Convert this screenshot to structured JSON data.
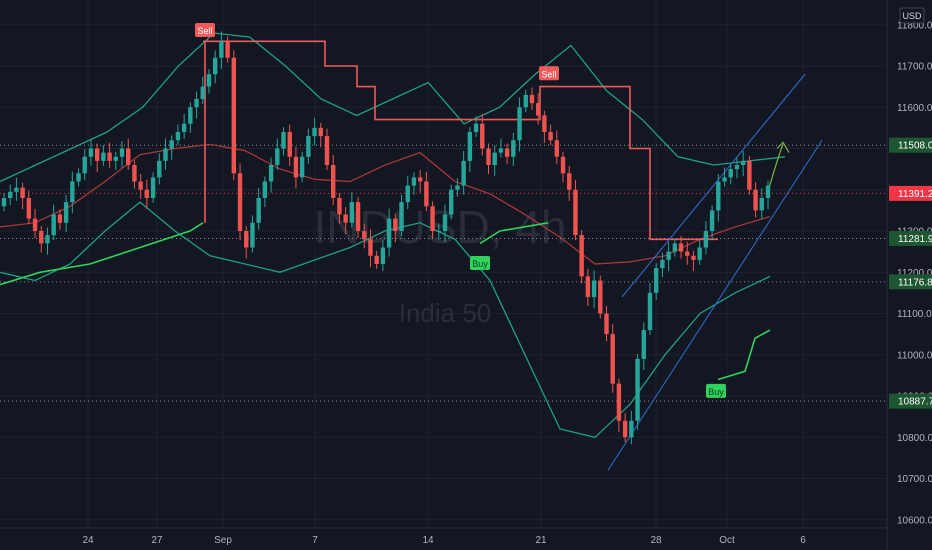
{
  "watermark": {
    "symbol": "INDUSD, 4h",
    "name": "India 50"
  },
  "price_axis": {
    "currency": "USD",
    "ticks": [
      "11800.0",
      "11700.0",
      "11600.0",
      "11500.0",
      "11400.0",
      "11300.0",
      "11200.0",
      "11100.0",
      "11000.0",
      "10900.0",
      "10800.0",
      "10700.0",
      "10600.0"
    ],
    "levels": [
      {
        "value": 11508.0,
        "label": "11508.0",
        "color": "#1e5631",
        "text_color": "#ffffff"
      },
      {
        "value": 11391.2,
        "label": "11391.2",
        "color": "#f23645",
        "text_color": "#ffffff"
      },
      {
        "value": 11281.9,
        "label": "11281.9",
        "color": "#1e5631",
        "text_color": "#ffffff"
      },
      {
        "value": 11176.8,
        "label": "11176.8",
        "color": "#1e5631",
        "text_color": "#ffffff"
      },
      {
        "value": 10887.7,
        "label": "10887.7",
        "color": "#1e5631",
        "text_color": "#ffffff"
      }
    ]
  },
  "time_axis": {
    "labels": [
      "24",
      "27",
      "Sep",
      "7",
      "14",
      "21",
      "28",
      "Oct",
      "6"
    ]
  },
  "signals": [
    {
      "type": "sell",
      "label": "Sell"
    },
    {
      "type": "sell",
      "label": "Sell"
    },
    {
      "type": "buy",
      "label": "Buy"
    },
    {
      "type": "buy",
      "label": "Buy"
    }
  ],
  "colors": {
    "background": "#131722",
    "grid": "#1e222d",
    "up": "#26a69a",
    "down": "#ef5350",
    "bollinger": "#1f9f86",
    "basis": "#b2373d",
    "stop_sell": "#f05a5a",
    "stop_buy": "#2fd35b",
    "channel": "#2e6fd8",
    "arrow": "#7cb342"
  },
  "chart_data": {
    "type": "candlestick",
    "title": "",
    "ylim": [
      10580,
      11860
    ],
    "candles_close": [
      11380,
      11395,
      11405,
      11380,
      11330,
      11300,
      11270,
      11290,
      11340,
      11320,
      11370,
      11420,
      11440,
      11480,
      11500,
      11470,
      11490,
      11470,
      11480,
      11500,
      11460,
      11420,
      11400,
      11380,
      11430,
      11470,
      11500,
      11520,
      11540,
      11560,
      11600,
      11620,
      11650,
      11680,
      11720,
      11760,
      11720,
      11440,
      11300,
      11260,
      11320,
      11380,
      11420,
      11460,
      11500,
      11540,
      11480,
      11430,
      11480,
      11530,
      11550,
      11530,
      11460,
      11380,
      11340,
      11320,
      11370,
      11300,
      11280,
      11240,
      11220,
      11260,
      11330,
      11300,
      11370,
      11410,
      11430,
      11420,
      11360,
      11300,
      11300,
      11340,
      11400,
      11410,
      11470,
      11540,
      11560,
      11500,
      11460,
      11490,
      11500,
      11480,
      11520,
      11600,
      11630,
      11610,
      11580,
      11540,
      11520,
      11480,
      11440,
      11400,
      11290,
      11190,
      11140,
      11180,
      11100,
      11050,
      10930,
      10840,
      10800,
      10840,
      10990,
      11060,
      11150,
      11210,
      11230,
      11250,
      11270,
      11250,
      11240,
      11230,
      11260,
      11300,
      11350,
      11420,
      11430,
      11450,
      11460,
      11470,
      11400,
      11350,
      11380,
      11410
    ],
    "bollinger_upper_approx": [
      11420,
      11460,
      11500,
      11540,
      11600,
      11700,
      11780,
      11770,
      11700,
      11620,
      11580,
      11620,
      11660,
      11560,
      11600,
      11680,
      11750,
      11640,
      11570,
      11480,
      11460,
      11470,
      11480
    ],
    "bollinger_lower_approx": [
      11200,
      11180,
      11220,
      11300,
      11370,
      11300,
      11240,
      11220,
      11200,
      11230,
      11260,
      11300,
      11320,
      11280,
      11180,
      11000,
      10820,
      10800,
      10880,
      11000,
      11100,
      11150,
      11190
    ],
    "trailing_stop_sell": [
      11760,
      11760,
      11700,
      11650,
      11570,
      11570,
      11650,
      11650,
      11500,
      11280,
      11280
    ],
    "trailing_stop_buy": [
      11170,
      11200,
      11220,
      11260,
      11280,
      11320,
      11320,
      10940,
      10960,
      11050,
      11070
    ],
    "annotations": [
      "Sell",
      "Sell",
      "Buy",
      "Buy"
    ]
  }
}
